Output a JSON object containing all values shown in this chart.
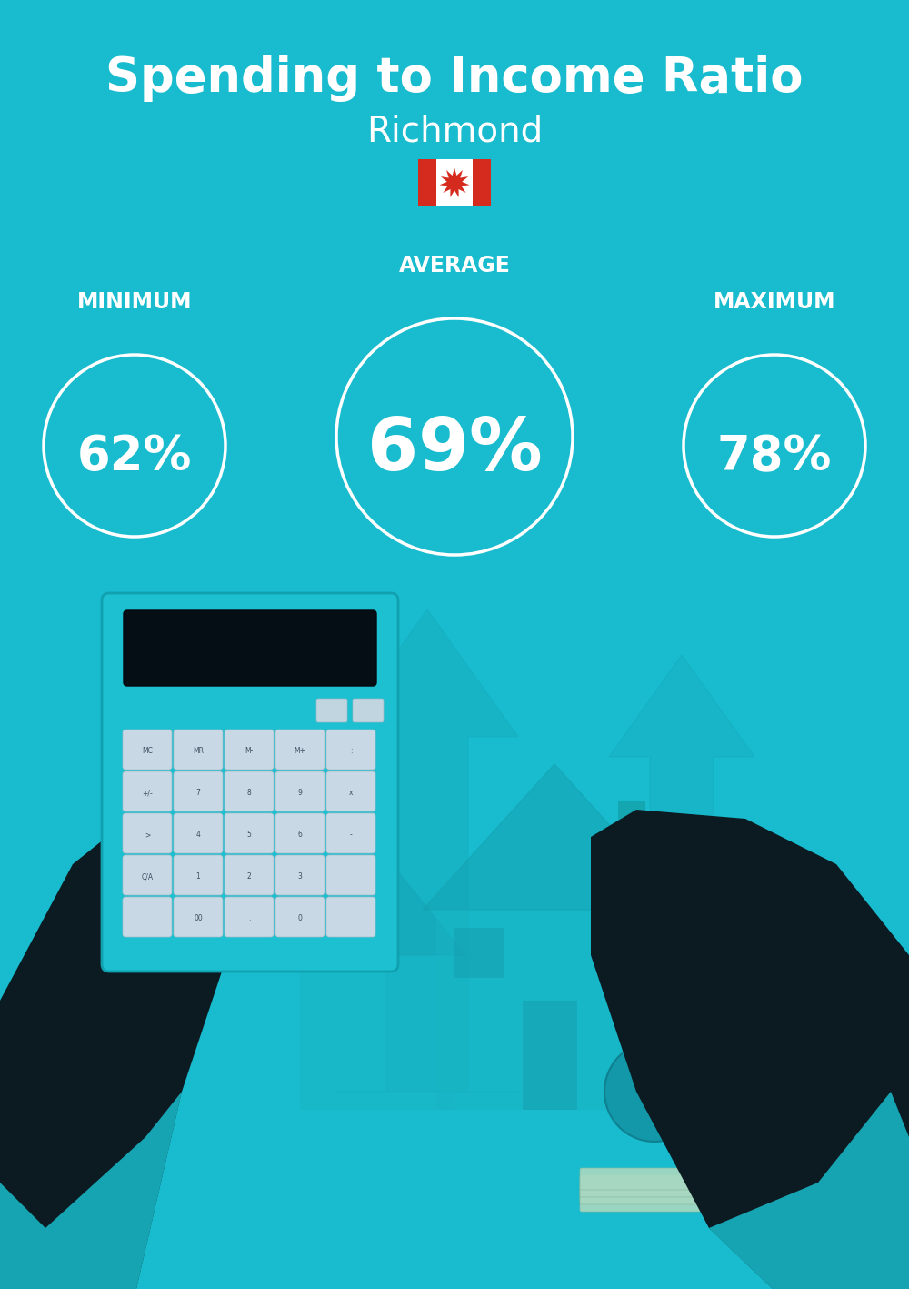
{
  "title": "Spending to Income Ratio",
  "subtitle": "Richmond",
  "bg_color": "#18BCCE",
  "text_color": "#FFFFFF",
  "min_label": "MINIMUM",
  "avg_label": "AVERAGE",
  "max_label": "MAXIMUM",
  "min_value": "62%",
  "avg_value": "69%",
  "max_value": "78%",
  "title_fontsize": 38,
  "subtitle_fontsize": 28,
  "label_fontsize": 17,
  "value_fontsize_small": 38,
  "value_fontsize_large": 58,
  "figsize": [
    10.0,
    14.17
  ],
  "dpi": 100,
  "bg_color_dark": "#14A8B8",
  "illustration_color": "#17B0C0",
  "dark_color": "#0C1A22",
  "calc_color": "#1DC0D0",
  "money_color": "#1298A8"
}
